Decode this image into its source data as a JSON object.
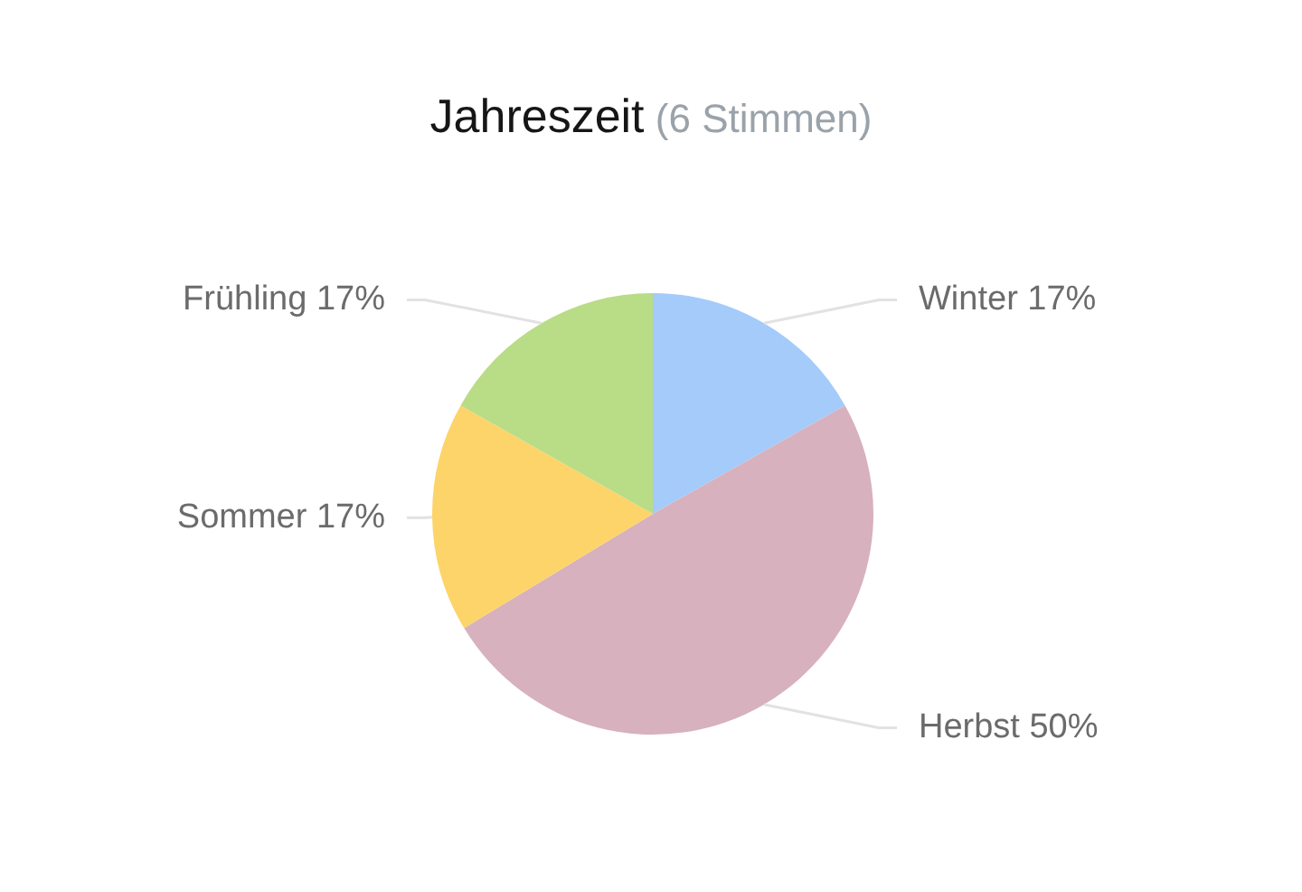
{
  "chart_data": {
    "type": "pie",
    "title": "Jahreszeit",
    "subtitle": "(6 Stimmen)",
    "categories": [
      "Winter",
      "Herbst",
      "Sommer",
      "Frühling"
    ],
    "values": [
      17,
      50,
      17,
      17
    ],
    "value_labels": [
      "17%",
      "50%",
      "17%",
      "17%"
    ],
    "colors": [
      "#a4cbfa",
      "#d7b1bd",
      "#fdd469",
      "#b9dc86"
    ],
    "legend": false
  }
}
